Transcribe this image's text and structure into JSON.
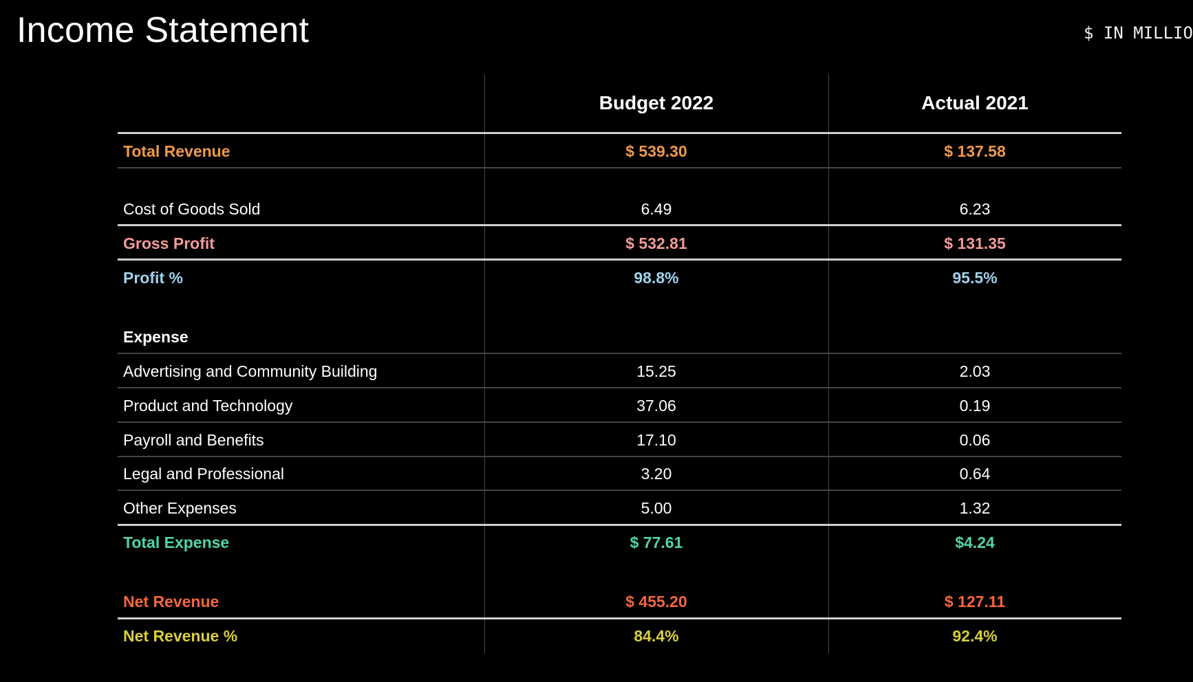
{
  "page": {
    "title": "Income Statement",
    "units": "$ IN MILLIONS"
  },
  "colors": {
    "revenue": "#f0994a",
    "gross_profit": "#f29b98",
    "profit_pct": "#9fd3ea",
    "total_expense": "#4fd6a3",
    "net_revenue": "#f4663e",
    "net_revenue_pct": "#d9cf3a",
    "text": "#ffffff"
  },
  "table": {
    "headers": [
      "",
      "Budget 2022",
      "Actual 2021"
    ],
    "rows": [
      {
        "label": "Total Revenue",
        "budget_2022": "$ 539.30",
        "actual_2021": "$ 137.58"
      },
      {
        "label": "Cost of Goods Sold",
        "budget_2022": "6.49",
        "actual_2021": "6.23"
      },
      {
        "label": "Gross Profit",
        "budget_2022": "$ 532.81",
        "actual_2021": "$ 131.35"
      },
      {
        "label": "Profit %",
        "budget_2022": "98.8%",
        "actual_2021": "95.5%"
      },
      {
        "label": "Expense",
        "budget_2022": "",
        "actual_2021": ""
      },
      {
        "label": "Advertising and Community Building",
        "budget_2022": "15.25",
        "actual_2021": "2.03"
      },
      {
        "label": "Product and Technology",
        "budget_2022": "37.06",
        "actual_2021": "0.19"
      },
      {
        "label": "Payroll and Benefits",
        "budget_2022": "17.10",
        "actual_2021": "0.06"
      },
      {
        "label": "Legal and Professional",
        "budget_2022": "3.20",
        "actual_2021": "0.64"
      },
      {
        "label": "Other Expenses",
        "budget_2022": "5.00",
        "actual_2021": "1.32"
      },
      {
        "label": "Total Expense",
        "budget_2022": "$ 77.61",
        "actual_2021": "$4.24"
      },
      {
        "label": "Net Revenue",
        "budget_2022": "$ 455.20",
        "actual_2021": "$ 127.11"
      },
      {
        "label": "Net Revenue %",
        "budget_2022": "84.4%",
        "actual_2021": "92.4%"
      }
    ]
  }
}
